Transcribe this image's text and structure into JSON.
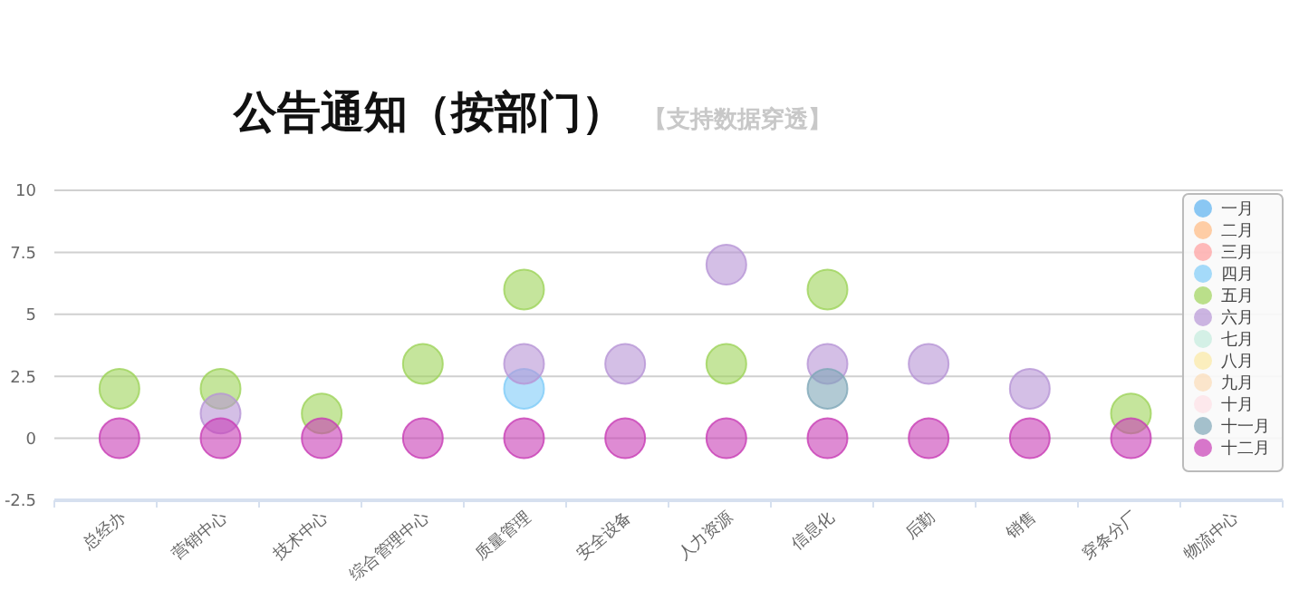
{
  "chart_data": {
    "type": "scatter",
    "title": "公告通知（按部门）",
    "subtitle": "【支持数据穿透】",
    "categories": [
      "总经办",
      "营销中心",
      "技术中心",
      "综合管理中心",
      "质量管理",
      "安全设备",
      "人力资源",
      "信息化",
      "后勤",
      "销售",
      "穿条分厂",
      "物流中心"
    ],
    "ylim": [
      -2.5,
      10
    ],
    "yticks": [
      -2.5,
      0,
      2.5,
      5,
      7.5,
      10
    ],
    "grid": "y",
    "legend": "right",
    "marker": "circle",
    "series": [
      {
        "name": "一月",
        "color": "#5ab1ef",
        "values": [
          null,
          null,
          null,
          null,
          null,
          null,
          null,
          null,
          null,
          null,
          null,
          null
        ]
      },
      {
        "name": "二月",
        "color": "#ffb980",
        "values": [
          null,
          null,
          null,
          null,
          null,
          null,
          null,
          null,
          null,
          null,
          null,
          null
        ]
      },
      {
        "name": "三月",
        "color": "#ff9c9c",
        "values": [
          null,
          null,
          null,
          null,
          null,
          null,
          null,
          null,
          null,
          null,
          null,
          null
        ]
      },
      {
        "name": "四月",
        "color": "#7fccf8",
        "values": [
          null,
          null,
          null,
          null,
          2,
          null,
          null,
          null,
          null,
          null,
          null,
          null
        ]
      },
      {
        "name": "五月",
        "color": "#9ed35a",
        "values": [
          2,
          2,
          1,
          3,
          6,
          null,
          3,
          6,
          null,
          null,
          1,
          null
        ]
      },
      {
        "name": "六月",
        "color": "#b795d6",
        "values": [
          null,
          1,
          null,
          null,
          3,
          3,
          7,
          3,
          3,
          2,
          null,
          null
        ]
      },
      {
        "name": "七月",
        "color": "#c3ebdd",
        "values": [
          null,
          null,
          null,
          null,
          null,
          null,
          null,
          null,
          null,
          null,
          null,
          null
        ]
      },
      {
        "name": "八月",
        "color": "#fbe8a3",
        "values": [
          null,
          null,
          null,
          null,
          null,
          null,
          null,
          null,
          null,
          null,
          null,
          null
        ]
      },
      {
        "name": "九月",
        "color": "#fbdcb7",
        "values": [
          null,
          null,
          null,
          null,
          null,
          null,
          null,
          null,
          null,
          null,
          null,
          null
        ]
      },
      {
        "name": "十月",
        "color": "#fde0e6",
        "values": [
          null,
          null,
          null,
          null,
          null,
          null,
          null,
          null,
          null,
          null,
          null,
          null
        ]
      },
      {
        "name": "十一月",
        "color": "#7fa7b8",
        "values": [
          null,
          null,
          null,
          null,
          null,
          null,
          null,
          2,
          null,
          null,
          null,
          null
        ]
      },
      {
        "name": "十二月",
        "color": "#c83db5",
        "values": [
          0,
          0,
          0,
          0,
          0,
          0,
          0,
          0,
          0,
          0,
          0,
          null
        ]
      }
    ]
  }
}
